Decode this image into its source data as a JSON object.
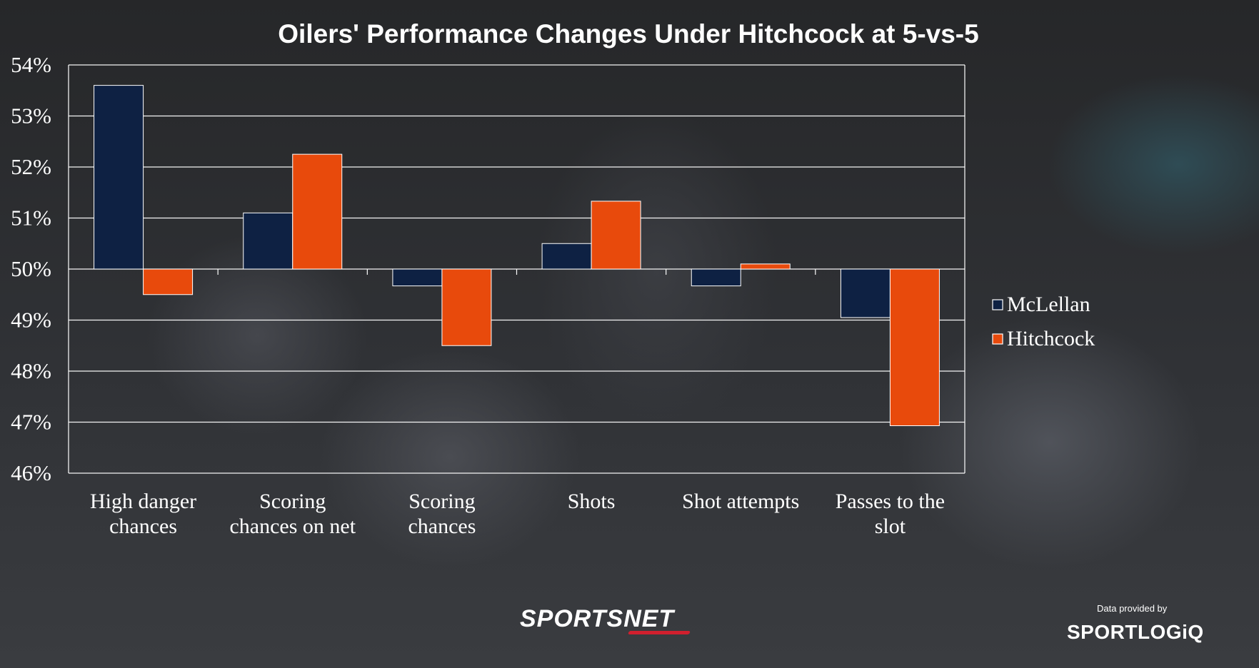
{
  "chart_data": {
    "type": "bar",
    "title": "Oilers' Performance Changes Under Hitchcock at 5-vs-5",
    "categories": [
      [
        "High danger",
        "chances"
      ],
      [
        "Scoring",
        "chances on net"
      ],
      [
        "Scoring",
        "chances"
      ],
      [
        "Shots"
      ],
      [
        "Shot attempts"
      ],
      [
        "Passes to the",
        "slot"
      ]
    ],
    "series": [
      {
        "name": "McLellan",
        "color": "#0e2143",
        "values": [
          53.6,
          51.1,
          49.67,
          50.5,
          49.67,
          49.05
        ]
      },
      {
        "name": "Hitchcock",
        "color": "#e84a0c",
        "values": [
          49.5,
          52.25,
          48.5,
          51.33,
          50.1,
          46.93
        ]
      }
    ],
    "baseline": 50,
    "ylim": [
      46,
      54
    ],
    "yticks": [
      "46%",
      "47%",
      "48%",
      "49%",
      "50%",
      "51%",
      "52%",
      "53%",
      "54%"
    ],
    "grid": true,
    "legend_position": "right"
  },
  "branding": {
    "network": "SPORTSNET",
    "provided_by": "Data provided by",
    "provider": "SPORTLOGiQ"
  }
}
